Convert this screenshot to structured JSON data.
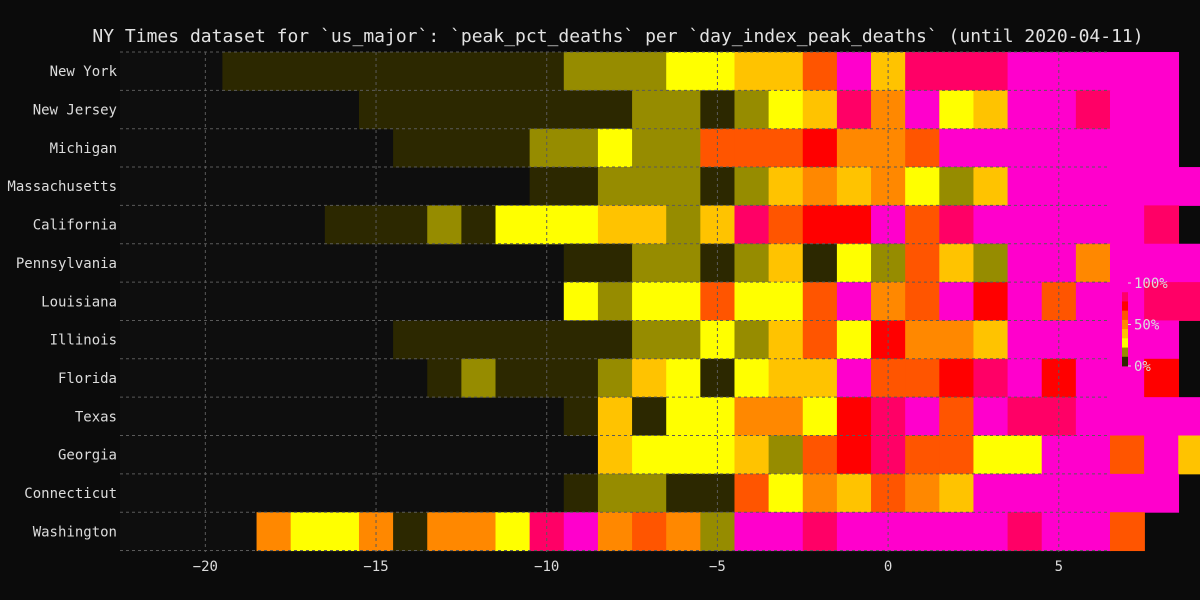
{
  "chart_data": {
    "type": "heatmap",
    "title": "NY Times dataset for `us_major`: `peak_pct_deaths` per `day_index_peak_deaths` (until 2020-04-11)",
    "xlabel": "",
    "ylabel": "",
    "x_range": [
      -22.5,
      6.5
    ],
    "x_ticks": [
      -20,
      -15,
      -10,
      -5,
      0,
      5
    ],
    "x_tick_labels": [
      "−20",
      "−15",
      "−10",
      "−5",
      "0",
      "5"
    ],
    "x_start": -22,
    "grid": true,
    "colorbar": {
      "ticks": [
        100,
        50,
        0
      ],
      "tick_labels": [
        "100%",
        "50%",
        "0%"
      ],
      "colors": [
        "#ff00cc",
        "#ff0066",
        "#ff0000",
        "#ff5500",
        "#ff8800",
        "#ffc300",
        "#ffff00",
        "#968c00",
        "#2c2800"
      ]
    },
    "palette": {
      "0": "#0e0e0e",
      "1": "#2c2800",
      "2": "#968c00",
      "3": "#ffff00",
      "4": "#ffc300",
      "5": "#ff8800",
      "6": "#ff5500",
      "7": "#ff0000",
      "8": "#ff0066",
      "9": "#ff00cc"
    },
    "levels_pct": {
      "1": 5,
      "2": 20,
      "3": 35,
      "4": 45,
      "5": 55,
      "6": 65,
      "7": 75,
      "8": 85,
      "9": 95
    },
    "rows": [
      {
        "label": "New York",
        "cells": [
          0,
          0,
          0,
          1,
          1,
          1,
          1,
          1,
          1,
          1,
          1,
          1,
          1,
          2,
          2,
          2,
          3,
          3,
          4,
          4,
          6,
          9,
          4,
          8,
          8,
          8,
          9,
          9,
          9,
          9,
          9,
          0,
          0,
          0,
          0
        ]
      },
      {
        "label": "New Jersey",
        "cells": [
          0,
          0,
          0,
          0,
          0,
          0,
          0,
          1,
          1,
          1,
          1,
          1,
          1,
          1,
          1,
          2,
          2,
          1,
          2,
          3,
          4,
          8,
          5,
          9,
          3,
          4,
          9,
          9,
          8,
          9,
          9,
          0,
          0,
          0,
          0
        ]
      },
      {
        "label": "Michigan",
        "cells": [
          0,
          0,
          0,
          0,
          0,
          0,
          0,
          0,
          1,
          1,
          1,
          1,
          2,
          2,
          3,
          2,
          2,
          6,
          6,
          6,
          7,
          5,
          5,
          6,
          9,
          9,
          9,
          9,
          9,
          9,
          9,
          0,
          0,
          0,
          0
        ]
      },
      {
        "label": "Massachusetts",
        "cells": [
          0,
          0,
          0,
          0,
          0,
          0,
          0,
          0,
          0,
          0,
          0,
          0,
          1,
          1,
          2,
          2,
          2,
          1,
          2,
          4,
          5,
          4,
          5,
          3,
          2,
          4,
          9,
          9,
          9,
          9,
          9,
          9,
          9,
          0,
          0
        ]
      },
      {
        "label": "California",
        "cells": [
          0,
          0,
          0,
          0,
          0,
          0,
          1,
          1,
          1,
          2,
          1,
          3,
          3,
          3,
          4,
          4,
          2,
          4,
          8,
          6,
          7,
          7,
          9,
          6,
          8,
          9,
          9,
          9,
          9,
          9,
          8,
          0,
          0,
          0,
          0
        ]
      },
      {
        "label": "Pennsylvania",
        "cells": [
          0,
          0,
          0,
          0,
          0,
          0,
          0,
          0,
          0,
          0,
          0,
          0,
          0,
          1,
          1,
          2,
          2,
          1,
          2,
          4,
          1,
          3,
          2,
          6,
          4,
          2,
          9,
          9,
          5,
          9,
          9,
          9,
          0,
          0,
          0
        ]
      },
      {
        "label": "Louisiana",
        "cells": [
          0,
          0,
          0,
          0,
          0,
          0,
          0,
          0,
          0,
          0,
          0,
          0,
          0,
          3,
          2,
          3,
          3,
          6,
          3,
          3,
          6,
          9,
          5,
          6,
          9,
          7,
          9,
          6,
          9,
          9,
          8,
          8,
          8,
          8,
          0
        ]
      },
      {
        "label": "Illinois",
        "cells": [
          0,
          0,
          0,
          0,
          0,
          0,
          0,
          0,
          1,
          1,
          1,
          1,
          1,
          1,
          1,
          2,
          2,
          3,
          2,
          4,
          6,
          3,
          7,
          5,
          5,
          4,
          9,
          9,
          9,
          9,
          9,
          0,
          0,
          0,
          0
        ]
      },
      {
        "label": "Florida",
        "cells": [
          0,
          0,
          0,
          0,
          0,
          0,
          0,
          0,
          0,
          1,
          2,
          1,
          1,
          1,
          2,
          4,
          3,
          1,
          3,
          4,
          4,
          9,
          6,
          6,
          7,
          8,
          9,
          7,
          9,
          9,
          7,
          0,
          0,
          0,
          0
        ]
      },
      {
        "label": "Texas",
        "cells": [
          0,
          0,
          0,
          0,
          0,
          0,
          0,
          0,
          0,
          0,
          0,
          0,
          0,
          1,
          4,
          1,
          3,
          3,
          5,
          5,
          3,
          7,
          8,
          9,
          6,
          9,
          8,
          8,
          9,
          9,
          9,
          9,
          0,
          0,
          0
        ]
      },
      {
        "label": "Georgia",
        "cells": [
          0,
          0,
          0,
          0,
          0,
          0,
          0,
          0,
          0,
          0,
          0,
          0,
          0,
          0,
          4,
          3,
          3,
          3,
          4,
          2,
          6,
          7,
          8,
          6,
          6,
          3,
          3,
          9,
          9,
          6,
          9,
          4,
          2,
          0,
          0
        ]
      },
      {
        "label": "Connecticut",
        "cells": [
          0,
          0,
          0,
          0,
          0,
          0,
          0,
          0,
          0,
          0,
          0,
          0,
          0,
          1,
          2,
          2,
          1,
          1,
          6,
          3,
          5,
          4,
          6,
          5,
          4,
          9,
          9,
          9,
          9,
          9,
          9,
          0,
          0,
          0,
          0
        ]
      },
      {
        "label": "Washington",
        "cells": [
          0,
          0,
          0,
          0,
          5,
          3,
          3,
          5,
          1,
          5,
          5,
          3,
          8,
          9,
          5,
          6,
          5,
          2,
          9,
          9,
          8,
          9,
          9,
          9,
          9,
          9,
          8,
          9,
          9,
          6,
          0,
          0,
          0,
          0,
          0
        ]
      }
    ]
  }
}
